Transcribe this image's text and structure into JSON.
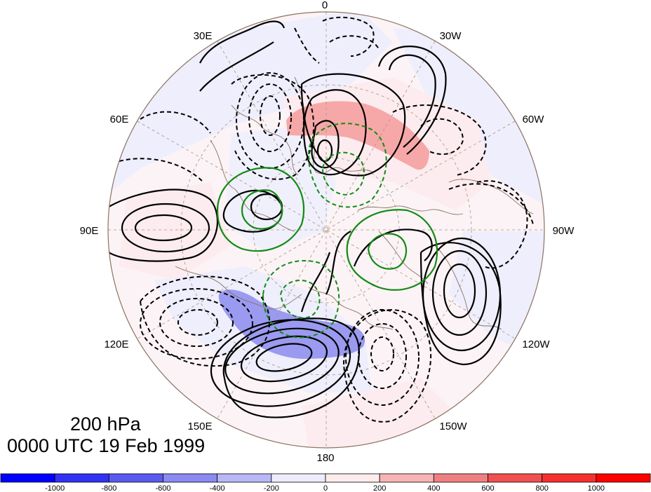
{
  "title": {
    "level": "200 hPa",
    "time": "0000 UTC 19 Feb 1999"
  },
  "longitude_labels": {
    "lon_0": "0",
    "lon_30w": "30W",
    "lon_60w": "60W",
    "lon_90w": "90W",
    "lon_120w": "120W",
    "lon_150w": "150W",
    "lon_180": "180",
    "lon_150e": "150E",
    "lon_120e": "120E",
    "lon_90e": "90E",
    "lon_60e": "60E",
    "lon_30e": "30E"
  },
  "colorbar": {
    "labels": [
      "-1000",
      "-800",
      "-600",
      "-400",
      "-200",
      "0",
      "200",
      "400",
      "600",
      "800",
      "1000"
    ],
    "colors": [
      "#0000ff",
      "#3232f5",
      "#5a5aef",
      "#8a8af0",
      "#b8b8f6",
      "#ececfd",
      "#fdecec",
      "#f6b4b4",
      "#f08080",
      "#f05050",
      "#f43030",
      "#ff0000"
    ]
  },
  "colors": {
    "background_positive": "#fdeeee",
    "background_negative": "#eeeefd",
    "positive_shade": "#f6a8a8",
    "negative_shade": "#9a9af0",
    "contour": "#000000",
    "green_contour": "#138a13",
    "coastline": "#8c7262"
  }
}
